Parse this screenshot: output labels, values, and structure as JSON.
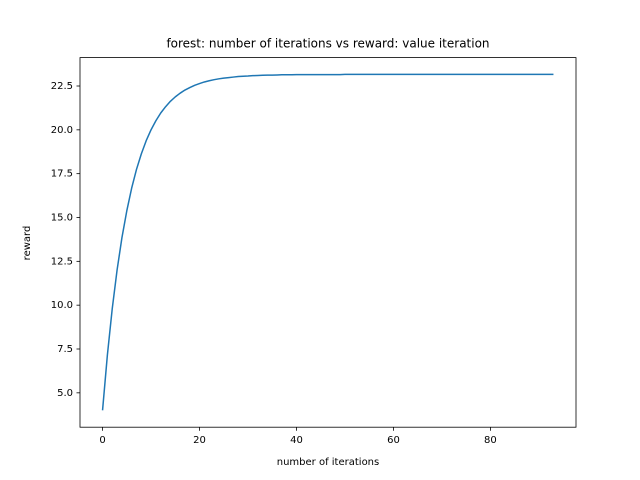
{
  "chart_data": {
    "type": "line",
    "title": "forest: number of iterations vs reward: value iteration",
    "xlabel": "number of iterations",
    "ylabel": "reward",
    "color": "#1f77b4",
    "x": [
      0,
      1,
      2,
      3,
      4,
      5,
      6,
      7,
      8,
      9,
      10,
      11,
      12,
      13,
      14,
      15,
      16,
      17,
      18,
      19,
      20,
      21,
      22,
      23,
      24,
      25,
      26,
      27,
      28,
      29,
      30,
      31,
      32,
      33,
      34,
      35,
      36,
      37,
      38,
      39,
      40,
      41,
      42,
      43,
      44,
      45,
      46,
      47,
      48,
      49,
      50,
      51,
      52,
      53,
      54,
      55,
      56,
      57,
      58,
      59,
      60,
      61,
      62,
      63,
      64,
      65,
      66,
      67,
      68,
      69,
      70,
      71,
      72,
      73,
      74,
      75,
      76,
      77,
      78,
      79,
      80,
      81,
      82,
      83,
      84,
      85,
      86,
      87,
      88,
      89,
      90,
      91,
      92,
      93
    ],
    "values": [
      4.0,
      7.16,
      9.8,
      12.01,
      13.85,
      15.38,
      16.67,
      17.74,
      18.63,
      19.38,
      20.0,
      20.52,
      20.96,
      21.32,
      21.63,
      21.88,
      22.09,
      22.27,
      22.41,
      22.54,
      22.64,
      22.73,
      22.8,
      22.86,
      22.91,
      22.95,
      22.98,
      23.01,
      23.04,
      23.06,
      23.07,
      23.09,
      23.1,
      23.11,
      23.12,
      23.12,
      23.13,
      23.14,
      23.14,
      23.14,
      23.15,
      23.15,
      23.15,
      23.15,
      23.15,
      23.15,
      23.15,
      23.15,
      23.15,
      23.15,
      23.16,
      23.16,
      23.16,
      23.16,
      23.16,
      23.16,
      23.16,
      23.16,
      23.16,
      23.16,
      23.16,
      23.16,
      23.16,
      23.16,
      23.16,
      23.16,
      23.16,
      23.16,
      23.16,
      23.16,
      23.16,
      23.16,
      23.16,
      23.16,
      23.16,
      23.16,
      23.16,
      23.16,
      23.16,
      23.16,
      23.16,
      23.16,
      23.16,
      23.16,
      23.16,
      23.16,
      23.16,
      23.16,
      23.16,
      23.16,
      23.16,
      23.16,
      23.16,
      23.16
    ],
    "xlim": [
      -4.65,
      97.65
    ],
    "ylim": [
      3.04,
      24.12
    ],
    "xticks": [
      0,
      20,
      40,
      60,
      80
    ],
    "yticks": [
      {
        "value": 5,
        "label": "5.0"
      },
      7.5,
      {
        "value": 10,
        "label": "10.0"
      },
      12.5,
      {
        "value": 15,
        "label": "15.0"
      },
      17.5,
      {
        "value": 20,
        "label": "20.0"
      },
      22.5
    ]
  }
}
